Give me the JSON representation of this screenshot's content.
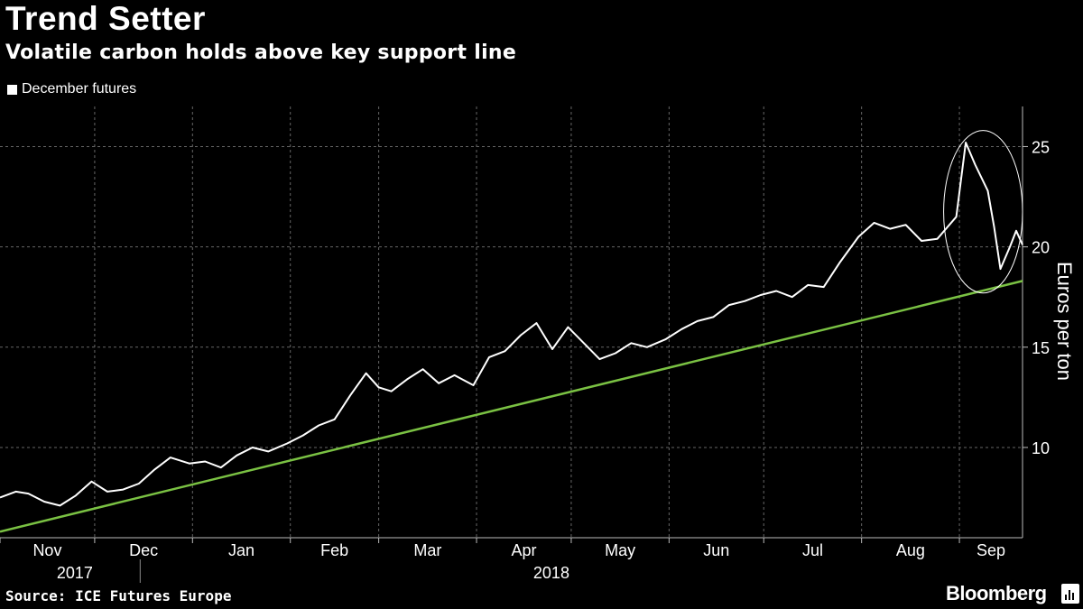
{
  "header": {
    "title": "Trend Setter",
    "subtitle": "Volatile carbon holds above key support line"
  },
  "legend": {
    "label": "December futures"
  },
  "footer": {
    "source": "Source: ICE Futures Europe",
    "brand": "Bloomberg"
  },
  "colors": {
    "background": "#000000",
    "series": "#ffffff",
    "trendline": "#7ac143",
    "grid": "#666666"
  },
  "chart_data": {
    "type": "line",
    "ylabel": "Euros per ton",
    "ylim": [
      5.5,
      27
    ],
    "yticks": [
      10,
      15,
      20,
      25
    ],
    "xlim": [
      "2017-11-01",
      "2018-09-21"
    ],
    "month_ticks": [
      {
        "label": "Nov",
        "date": "2017-11-01"
      },
      {
        "label": "Dec",
        "date": "2017-12-01"
      },
      {
        "label": "Jan",
        "date": "2018-01-01"
      },
      {
        "label": "Feb",
        "date": "2018-02-01"
      },
      {
        "label": "Mar",
        "date": "2018-03-01"
      },
      {
        "label": "Apr",
        "date": "2018-04-01"
      },
      {
        "label": "May",
        "date": "2018-05-01"
      },
      {
        "label": "Jun",
        "date": "2018-06-01"
      },
      {
        "label": "Jul",
        "date": "2018-07-01"
      },
      {
        "label": "Aug",
        "date": "2018-08-01"
      },
      {
        "label": "Sep",
        "date": "2018-09-01"
      }
    ],
    "year_labels": [
      {
        "label": "2017",
        "date": "2017-12-01"
      },
      {
        "label": "2018",
        "date": "2018-05-01"
      }
    ],
    "grid": true,
    "legend_position": "top-left",
    "series": [
      {
        "name": "December futures",
        "x": [
          "2017-11-01",
          "2017-11-06",
          "2017-11-10",
          "2017-11-15",
          "2017-11-20",
          "2017-11-25",
          "2017-11-30",
          "2017-12-05",
          "2017-12-10",
          "2017-12-15",
          "2017-12-20",
          "2017-12-25",
          "2017-12-31",
          "2018-01-05",
          "2018-01-10",
          "2018-01-15",
          "2018-01-20",
          "2018-01-25",
          "2018-01-31",
          "2018-02-05",
          "2018-02-10",
          "2018-02-15",
          "2018-02-20",
          "2018-02-25",
          "2018-03-01",
          "2018-03-05",
          "2018-03-10",
          "2018-03-15",
          "2018-03-20",
          "2018-03-25",
          "2018-03-31",
          "2018-04-05",
          "2018-04-10",
          "2018-04-15",
          "2018-04-20",
          "2018-04-25",
          "2018-04-30",
          "2018-05-05",
          "2018-05-10",
          "2018-05-15",
          "2018-05-20",
          "2018-05-25",
          "2018-05-31",
          "2018-06-05",
          "2018-06-10",
          "2018-06-15",
          "2018-06-20",
          "2018-06-25",
          "2018-06-30",
          "2018-07-05",
          "2018-07-10",
          "2018-07-15",
          "2018-07-20",
          "2018-07-25",
          "2018-07-31",
          "2018-08-05",
          "2018-08-10",
          "2018-08-15",
          "2018-08-20",
          "2018-08-25",
          "2018-08-31",
          "2018-09-03",
          "2018-09-06",
          "2018-09-10",
          "2018-09-12",
          "2018-09-14",
          "2018-09-17",
          "2018-09-19",
          "2018-09-21"
        ],
        "values": [
          7.5,
          7.8,
          7.7,
          7.3,
          7.1,
          7.6,
          8.3,
          7.8,
          7.9,
          8.2,
          8.9,
          9.5,
          9.2,
          9.3,
          9.0,
          9.6,
          10.0,
          9.8,
          10.2,
          10.6,
          11.1,
          11.4,
          12.6,
          13.7,
          13.0,
          12.8,
          13.4,
          13.9,
          13.2,
          13.6,
          13.1,
          14.5,
          14.8,
          15.6,
          16.2,
          14.9,
          16.0,
          15.2,
          14.4,
          14.7,
          15.2,
          15.0,
          15.4,
          15.9,
          16.3,
          16.5,
          17.1,
          17.3,
          17.6,
          17.8,
          17.5,
          18.1,
          18.0,
          19.2,
          20.5,
          21.2,
          20.9,
          21.1,
          20.3,
          20.4,
          21.5,
          25.2,
          24.1,
          22.8,
          21.0,
          18.9,
          20.0,
          20.8,
          20.1
        ],
        "color": "#ffffff"
      },
      {
        "name": "",
        "x": [
          "2017-11-01",
          "2018-09-21"
        ],
        "values": [
          5.8,
          18.3
        ],
        "color": "#7ac143",
        "style": "trendline"
      }
    ],
    "annotations": [
      {
        "type": "ellipse",
        "around": "September spike",
        "x_range": [
          "2018-08-27",
          "2018-09-21"
        ],
        "y_range": [
          17.7,
          25.8
        ]
      }
    ]
  }
}
